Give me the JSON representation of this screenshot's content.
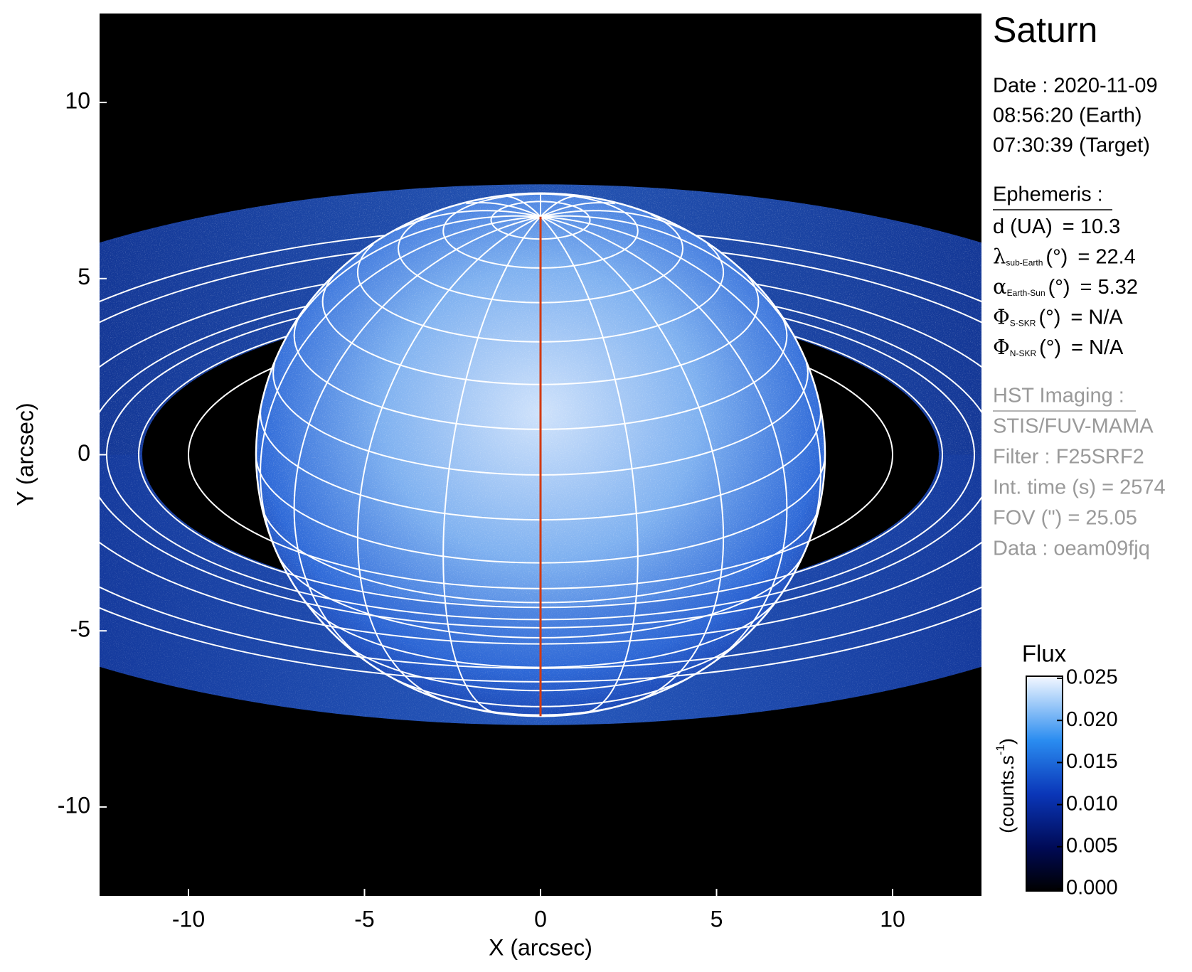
{
  "chart_data": {
    "type": "image",
    "title": "Saturn",
    "x_label": "X (arcsec)",
    "y_label": "Y (arcsec)",
    "xlim": [
      -12.525,
      12.525
    ],
    "ylim": [
      -12.525,
      12.525
    ],
    "xticks": [
      -10,
      -5,
      0,
      5,
      10
    ],
    "yticks": [
      -10,
      -5,
      0,
      5,
      10
    ],
    "date_lines": [
      "Date : 2020-11-09",
      "08:56:20 (Earth)",
      "07:30:39 (Target)"
    ],
    "ephemeris": {
      "heading": "Ephemeris :",
      "rows": [
        {
          "label": "d (UA)",
          "value": "= 10.3"
        },
        {
          "symbol": "λ",
          "sub": "sub-Earth",
          "label": "(°)",
          "value": "= 22.4"
        },
        {
          "symbol": "α",
          "sub": "Earth-Sun",
          "label": "(°)",
          "value": "= 5.32"
        },
        {
          "symbol": "Φ",
          "sub": "S-SKR",
          "label": "(°)",
          "value": "= N/A"
        },
        {
          "symbol": "Φ",
          "sub": "N-SKR",
          "label": "(°)",
          "value": "= N/A"
        }
      ]
    },
    "imaging": {
      "heading": "HST Imaging :",
      "lines": [
        "STIS/FUV-MAMA",
        "Filter : F25SRF2",
        "Int. time (s) = 2574",
        "FOV (\") = 25.05",
        "Data : oeam09fjq"
      ]
    },
    "colorbar": {
      "title": "Flux",
      "unit": {
        "base": "(counts.s",
        "sup": "-1",
        "end": ")"
      },
      "lim": [
        0,
        0.025
      ],
      "ticks": [
        {
          "value": 0,
          "label": "0.000"
        },
        0.005,
        {
          "value": 0.01,
          "label": "0.010"
        },
        0.015,
        {
          "value": 0.02,
          "label": "0.020"
        },
        0.025
      ]
    }
  }
}
